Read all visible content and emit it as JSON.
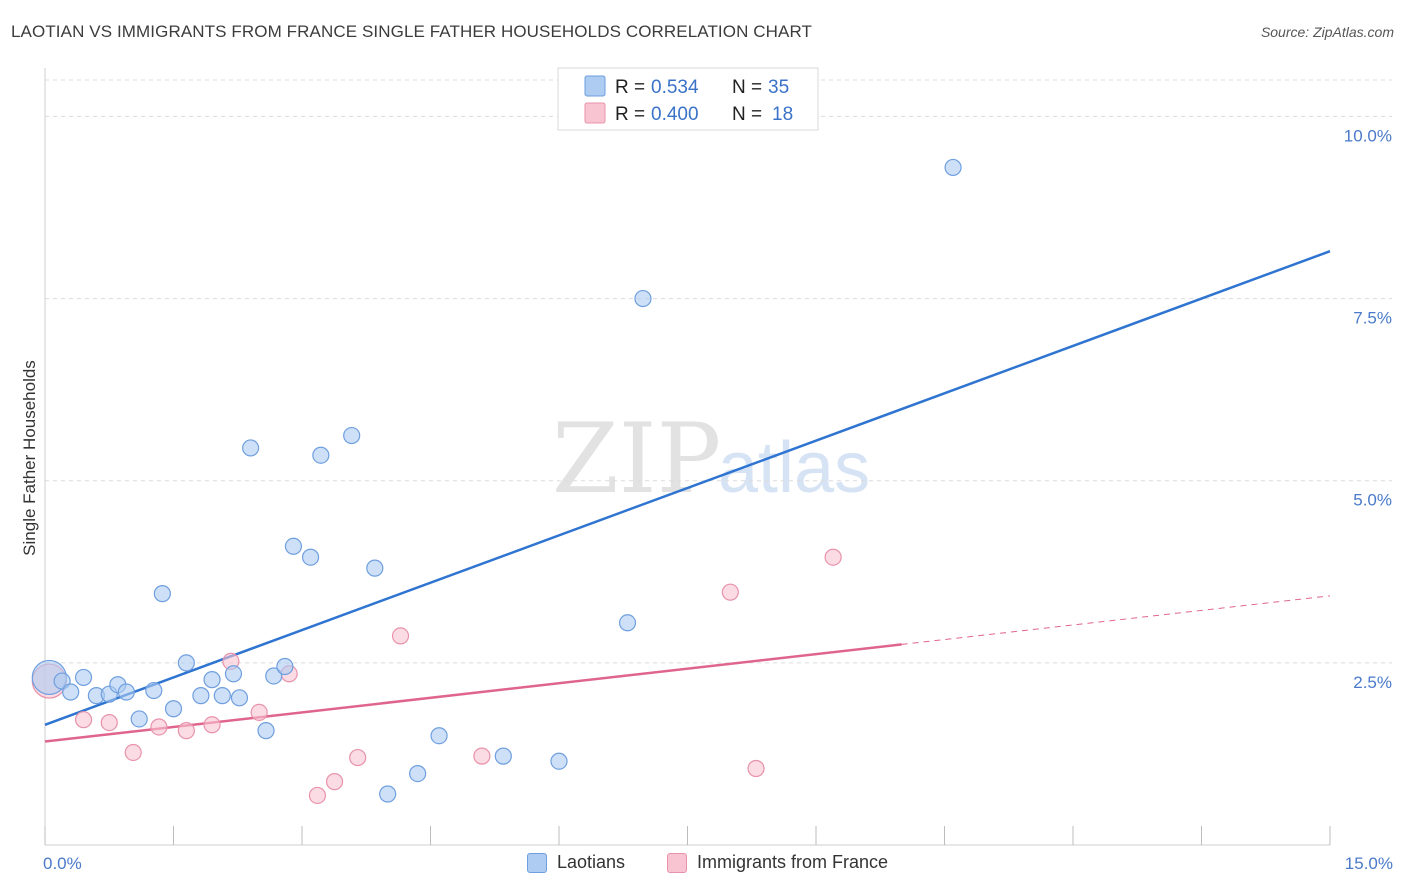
{
  "title": "LAOTIAN VS IMMIGRANTS FROM FRANCE SINGLE FATHER HOUSEHOLDS CORRELATION CHART",
  "source": "Source: ZipAtlas.com",
  "watermark": {
    "zip": "ZIP",
    "atlas": "atlas"
  },
  "colors": {
    "blue_fill": "#aecbf2",
    "blue_stroke": "#6f9fdf",
    "blue_line": "#2e74d0",
    "pink_fill": "#f9c4d2",
    "pink_stroke": "#e892ab",
    "pink_line": "#e0658d",
    "tick_text": "#4a7ac9",
    "grid": "#dcdcdc"
  },
  "legend": {
    "rows": [
      {
        "r_label": "R =",
        "r_value": "0.534",
        "n_label": "N =",
        "n_value": "35"
      },
      {
        "r_label": "R =",
        "r_value": "0.400",
        "n_label": "N =",
        "n_value": "18"
      }
    ]
  },
  "bottom_legend": [
    "Laotians",
    "Immigrants from France"
  ],
  "chart_data": {
    "type": "scatter",
    "title": "LAOTIAN VS IMMIGRANTS FROM FRANCE SINGLE FATHER HOUSEHOLDS CORRELATION CHART",
    "xlabel": "",
    "ylabel": "Single Father Households",
    "xlim": [
      0,
      15
    ],
    "ylim": [
      0,
      10.5
    ],
    "x_tick_labels": [
      "0.0%",
      "15.0%"
    ],
    "y_ticks": [
      2.5,
      5.0,
      7.5,
      10.0
    ],
    "y_tick_labels": [
      "2.5%",
      "5.0%",
      "7.5%",
      "10.0%"
    ],
    "grid": true,
    "series": [
      {
        "name": "Laotians",
        "color": "blue",
        "r": 0.534,
        "n": 35,
        "trend": {
          "x": [
            0,
            15
          ],
          "y": [
            1.65,
            8.15
          ],
          "dashed_from": null
        },
        "points": [
          {
            "x": 0.05,
            "y": 2.3,
            "big": true
          },
          {
            "x": 0.2,
            "y": 2.25
          },
          {
            "x": 0.3,
            "y": 2.1
          },
          {
            "x": 0.45,
            "y": 2.3
          },
          {
            "x": 0.6,
            "y": 2.05
          },
          {
            "x": 0.75,
            "y": 2.07
          },
          {
            "x": 0.85,
            "y": 2.2
          },
          {
            "x": 0.95,
            "y": 2.1
          },
          {
            "x": 1.1,
            "y": 1.73
          },
          {
            "x": 1.27,
            "y": 2.12
          },
          {
            "x": 1.37,
            "y": 3.45
          },
          {
            "x": 1.5,
            "y": 1.87
          },
          {
            "x": 1.65,
            "y": 2.5
          },
          {
            "x": 1.82,
            "y": 2.05
          },
          {
            "x": 1.95,
            "y": 2.27
          },
          {
            "x": 2.07,
            "y": 2.05
          },
          {
            "x": 2.2,
            "y": 2.35
          },
          {
            "x": 2.27,
            "y": 2.02
          },
          {
            "x": 2.4,
            "y": 5.45
          },
          {
            "x": 2.58,
            "y": 1.57
          },
          {
            "x": 2.67,
            "y": 2.32
          },
          {
            "x": 2.8,
            "y": 2.45
          },
          {
            "x": 2.9,
            "y": 4.1
          },
          {
            "x": 3.1,
            "y": 3.95
          },
          {
            "x": 3.22,
            "y": 5.35
          },
          {
            "x": 3.58,
            "y": 5.62
          },
          {
            "x": 3.85,
            "y": 3.8
          },
          {
            "x": 4.0,
            "y": 0.7
          },
          {
            "x": 4.35,
            "y": 0.98
          },
          {
            "x": 4.6,
            "y": 1.5
          },
          {
            "x": 5.35,
            "y": 1.22
          },
          {
            "x": 6.0,
            "y": 1.15
          },
          {
            "x": 6.8,
            "y": 3.05
          },
          {
            "x": 6.98,
            "y": 7.5
          },
          {
            "x": 10.6,
            "y": 9.3
          }
        ]
      },
      {
        "name": "Immigrants from France",
        "color": "pink",
        "r": 0.4,
        "n": 18,
        "trend": {
          "x": [
            0,
            15
          ],
          "y": [
            1.42,
            3.42
          ],
          "dashed_from": 10.0
        },
        "points": [
          {
            "x": 0.05,
            "y": 2.25,
            "big": true
          },
          {
            "x": 0.45,
            "y": 1.72
          },
          {
            "x": 0.75,
            "y": 1.68
          },
          {
            "x": 1.03,
            "y": 1.27
          },
          {
            "x": 1.33,
            "y": 1.62
          },
          {
            "x": 1.65,
            "y": 1.57
          },
          {
            "x": 1.95,
            "y": 1.65
          },
          {
            "x": 2.17,
            "y": 2.52
          },
          {
            "x": 2.5,
            "y": 1.82
          },
          {
            "x": 2.85,
            "y": 2.35
          },
          {
            "x": 3.18,
            "y": 0.68
          },
          {
            "x": 3.38,
            "y": 0.87
          },
          {
            "x": 3.65,
            "y": 1.2
          },
          {
            "x": 4.15,
            "y": 2.87
          },
          {
            "x": 5.1,
            "y": 1.22
          },
          {
            "x": 8.0,
            "y": 3.47
          },
          {
            "x": 8.3,
            "y": 1.05
          },
          {
            "x": 9.2,
            "y": 3.95
          }
        ]
      }
    ]
  }
}
